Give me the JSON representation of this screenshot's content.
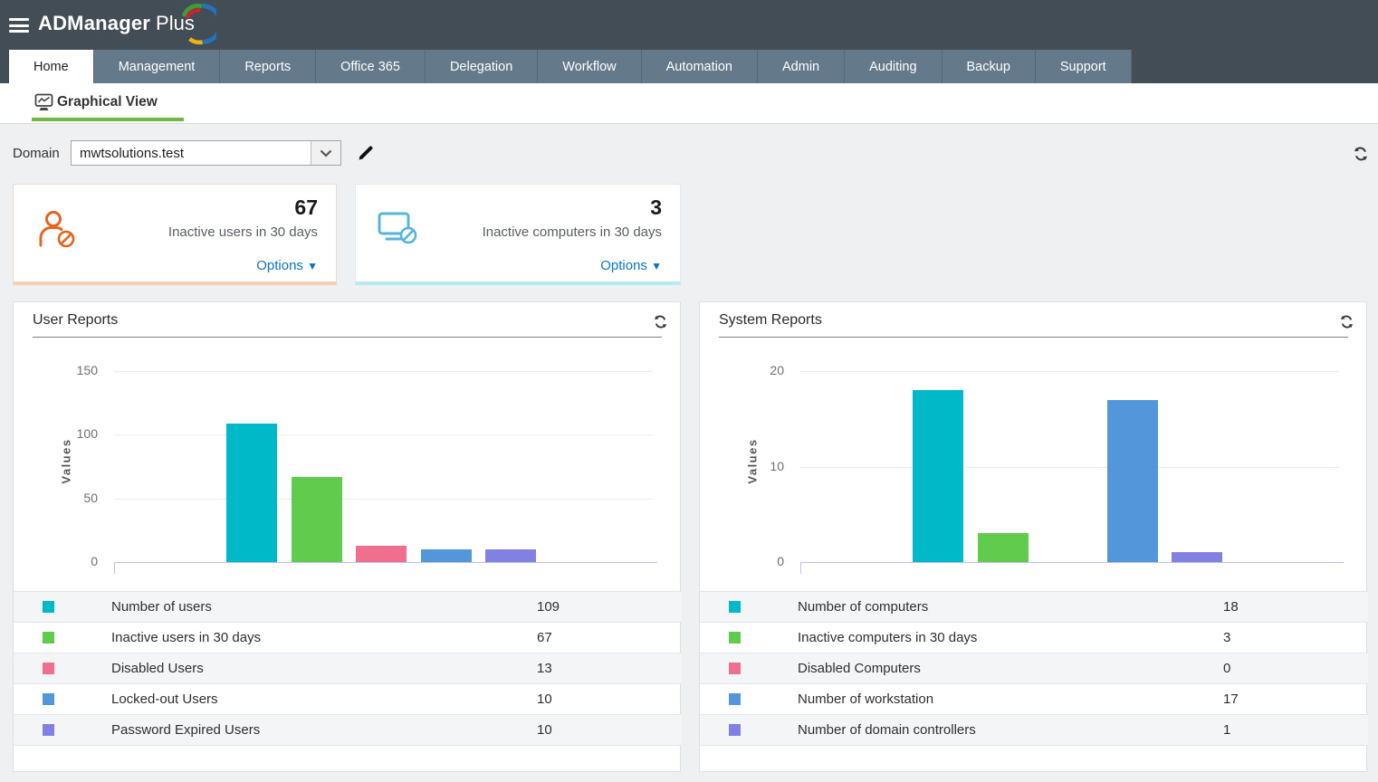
{
  "app": {
    "logo_primary": "ADManager",
    "logo_secondary": "Plus"
  },
  "nav": {
    "tabs": [
      {
        "label": "Home",
        "active": true
      },
      {
        "label": "Management",
        "active": false
      },
      {
        "label": "Reports",
        "active": false
      },
      {
        "label": "Office 365",
        "active": false
      },
      {
        "label": "Delegation",
        "active": false
      },
      {
        "label": "Workflow",
        "active": false
      },
      {
        "label": "Automation",
        "active": false
      },
      {
        "label": "Admin",
        "active": false
      },
      {
        "label": "Auditing",
        "active": false
      },
      {
        "label": "Backup",
        "active": false
      },
      {
        "label": "Support",
        "active": false
      }
    ]
  },
  "subnav": {
    "title": "Graphical View"
  },
  "domain_bar": {
    "label": "Domain",
    "selected_domain": "mwtsolutions.test"
  },
  "cards": [
    {
      "value": "67",
      "label": "Inactive users in 30 days",
      "options_label": "Options",
      "icon": "inactive-user-icon",
      "accent": "#e2661f",
      "bottom_border": "#f9cdb4"
    },
    {
      "value": "3",
      "label": "Inactive computers in 30 days",
      "options_label": "Options",
      "icon": "inactive-computer-icon",
      "accent": "#55b7d7",
      "bottom_border": "#b3e8f4"
    }
  ],
  "icons": {
    "menu": "hamburger-icon",
    "subnav": "chart-monitor-icon",
    "domain_edit": "pencil-icon",
    "refresh": "refresh-icon",
    "dropdown": "chevron-down-icon",
    "options_caret": "caret-down-icon"
  },
  "colors": {
    "header_bg": "#424d55",
    "tab_bg": "#64798a",
    "active_tab_bg": "#ffffff",
    "subnav_accent": "#6fb844",
    "options_link": "#0a74c4",
    "page_bg": "#eef0f2",
    "series": [
      "#00b9c8",
      "#61cb4e",
      "#f06e8e",
      "#5496da",
      "#8081e2"
    ]
  },
  "chart_data": [
    {
      "type": "bar",
      "title": "User Reports",
      "ylabel": "Values",
      "ylim": [
        0,
        150
      ],
      "yticks": [
        0,
        50,
        100,
        150
      ],
      "grid": true,
      "legend_position": "bottom-table",
      "categories": [
        "Number of users",
        "Inactive users in 30 days",
        "Disabled Users",
        "Locked-out Users",
        "Password Expired Users"
      ],
      "values": [
        109,
        67,
        13,
        10,
        10
      ],
      "colors": [
        "#00b9c8",
        "#61cb4e",
        "#f06e8e",
        "#5496da",
        "#8081e2"
      ]
    },
    {
      "type": "bar",
      "title": "System Reports",
      "ylabel": "Values",
      "ylim": [
        0,
        20
      ],
      "yticks": [
        0,
        10,
        20
      ],
      "grid": true,
      "legend_position": "bottom-table",
      "categories": [
        "Number of computers",
        "Inactive computers in 30 days",
        "Disabled Computers",
        "Number of workstation",
        "Number of domain controllers"
      ],
      "values": [
        18,
        3,
        0,
        17,
        1
      ],
      "colors": [
        "#00b9c8",
        "#61cb4e",
        "#f06e8e",
        "#5496da",
        "#8081e2"
      ]
    }
  ]
}
